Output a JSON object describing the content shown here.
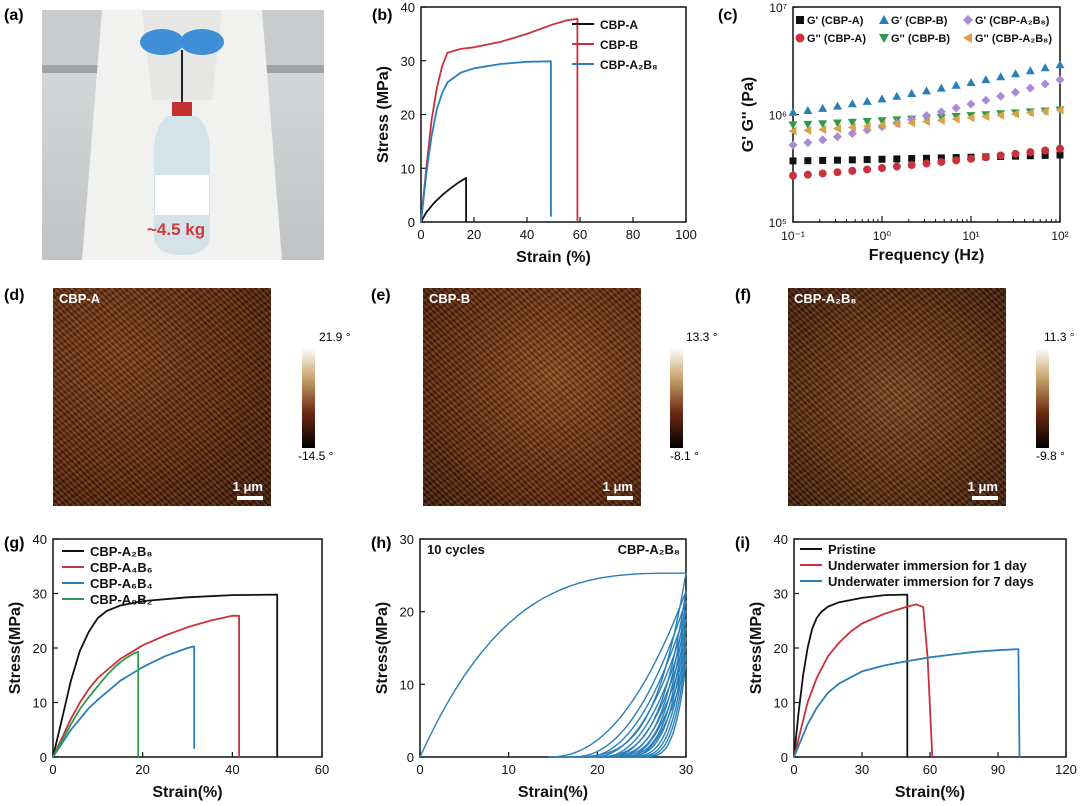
{
  "panels": {
    "a": {
      "label": "(a)",
      "annotation": "~4.5 kg"
    },
    "b": {
      "label": "(b)"
    },
    "c": {
      "label": "(c)"
    },
    "d": {
      "label": "(d)",
      "name": "CBP-A",
      "cb_max": "21.9 °",
      "cb_min": "-14.5 °",
      "scale": "1 μm"
    },
    "e": {
      "label": "(e)",
      "name": "CBP-B",
      "cb_max": "13.3 °",
      "cb_min": "-8.1 °",
      "scale": "1 μm"
    },
    "f": {
      "label": "(f)",
      "name": "CBP-A₂B₈",
      "cb_max": "11.3 °",
      "cb_min": "-9.8 °",
      "scale": "1 μm"
    },
    "g": {
      "label": "(g)"
    },
    "h": {
      "label": "(h)"
    },
    "i": {
      "label": "(i)"
    }
  },
  "colors": {
    "black": "#111111",
    "red": "#c8323c",
    "blue": "#2a7fb8",
    "green": "#2e9a4a",
    "purple": "#a98ad6",
    "orange": "#d9a14a"
  },
  "chart_data": [
    {
      "id": "b",
      "type": "line",
      "xlabel": "Strain (%)",
      "ylabel": "Stress (MPa)",
      "xlim": [
        0,
        100
      ],
      "ylim": [
        0,
        40
      ],
      "xticks": [
        0,
        20,
        40,
        60,
        80,
        100
      ],
      "yticks": [
        0,
        10,
        20,
        30,
        40
      ],
      "series": [
        {
          "name": "CBP-A",
          "color": "#111111",
          "x": [
            0,
            2,
            5,
            8,
            11,
            14,
            17,
            17
          ],
          "y": [
            0,
            1.8,
            3.6,
            5.0,
            6.2,
            7.3,
            8.2,
            0
          ]
        },
        {
          "name": "CBP-B",
          "color": "#c8323c",
          "x": [
            0,
            2,
            4,
            6,
            8,
            10,
            15,
            20,
            30,
            40,
            50,
            55,
            59,
            59
          ],
          "y": [
            0,
            10,
            19,
            25,
            29,
            31.5,
            32.2,
            32.5,
            33.5,
            35,
            36.8,
            37.5,
            37.8,
            0
          ]
        },
        {
          "name": "CBP-A₂B₈",
          "color": "#2a7fb8",
          "x": [
            0,
            2,
            4,
            6,
            8,
            10,
            15,
            20,
            30,
            40,
            49,
            49
          ],
          "y": [
            0,
            9,
            16,
            21,
            24,
            26,
            27.8,
            28.6,
            29.4,
            29.8,
            29.9,
            1
          ]
        }
      ]
    },
    {
      "id": "c",
      "type": "scatter",
      "xlabel": "Frequency (Hz)",
      "ylabel": "G' G'' (Pa)",
      "xscale": "log",
      "yscale": "log",
      "xlim": [
        0.1,
        100
      ],
      "ylim": [
        100000,
        10000000
      ],
      "xtick_labels": [
        "10⁻¹",
        "10⁰",
        "10¹",
        "10²"
      ],
      "ytick_labels": [
        "10⁵",
        "10⁶",
        "10⁷"
      ],
      "series": [
        {
          "name": "G' (CBP-A)",
          "marker": "square",
          "color": "#111111",
          "y_start": 370000,
          "y_end": 420000
        },
        {
          "name": "G'' (CBP-A)",
          "marker": "circle",
          "color": "#c8323c",
          "y_start": 270000,
          "y_end": 480000
        },
        {
          "name": "G' (CBP-B)",
          "marker": "triangle-up",
          "color": "#2a7fb8",
          "y_start": 1050000,
          "y_end": 2900000
        },
        {
          "name": "G'' (CBP-B)",
          "marker": "triangle-down",
          "color": "#2e9a4a",
          "y_start": 800000,
          "y_end": 1100000
        },
        {
          "name": "G' (CBP-A₂B₈)",
          "marker": "diamond",
          "color": "#a98ad6",
          "y_start": 520000,
          "y_end": 2100000
        },
        {
          "name": "G'' (CBP-A₂B₈)",
          "marker": "triangle-left",
          "color": "#d9a14a",
          "y_start": 700000,
          "y_end": 1100000
        }
      ]
    },
    {
      "id": "g",
      "type": "line",
      "xlabel": "Strain(%)",
      "ylabel": "Stress(MPa)",
      "xlim": [
        0,
        60
      ],
      "ylim": [
        0,
        40
      ],
      "xticks": [
        0,
        20,
        40,
        60
      ],
      "yticks": [
        0,
        10,
        20,
        30,
        40
      ],
      "series": [
        {
          "name": "CBP-A₂B₈",
          "color": "#111111",
          "x": [
            0,
            2,
            4,
            6,
            8,
            10,
            12,
            15,
            20,
            30,
            40,
            50,
            50
          ],
          "y": [
            0,
            7,
            14,
            19.5,
            23,
            25.5,
            26.8,
            27.8,
            28.6,
            29.3,
            29.7,
            29.8,
            0
          ]
        },
        {
          "name": "CBP-A₄B₆",
          "color": "#c8323c",
          "x": [
            0,
            2,
            4,
            6,
            8,
            10,
            15,
            20,
            25,
            30,
            35,
            40,
            41.5,
            41.5
          ],
          "y": [
            0,
            3.5,
            7,
            10,
            12.5,
            14.5,
            18,
            20.5,
            22.3,
            23.8,
            25,
            25.9,
            25.9,
            0
          ]
        },
        {
          "name": "CBP-A₆B₄",
          "color": "#2a7fb8",
          "x": [
            0,
            2,
            4,
            6,
            8,
            10,
            15,
            20,
            25,
            30,
            31.5,
            31.5
          ],
          "y": [
            0,
            2.5,
            5,
            7,
            9,
            10.5,
            14,
            16.5,
            18.5,
            20,
            20.3,
            1.5
          ]
        },
        {
          "name": "CBP-A₈B₂",
          "color": "#2e9a4a",
          "x": [
            0,
            2,
            4,
            6,
            8,
            10,
            12,
            14,
            16,
            18,
            19,
            19
          ],
          "y": [
            0,
            3,
            6,
            8.8,
            11,
            13,
            15,
            16.7,
            18,
            19,
            19.3,
            0
          ]
        }
      ]
    },
    {
      "id": "h",
      "type": "line",
      "xlabel": "Strain(%)",
      "ylabel": "Stress(MPa)",
      "xlim": [
        0,
        30
      ],
      "ylim": [
        0,
        30
      ],
      "xticks": [
        0,
        10,
        20,
        30
      ],
      "yticks": [
        0,
        10,
        20,
        30
      ],
      "annotation_left": "10 cycles",
      "annotation_right": "CBP-A₂B₈",
      "loading_peaks": [
        25.3,
        22.8,
        21.5,
        20.2,
        19.0,
        17.8,
        16.5,
        15.3,
        14.0,
        12.8
      ],
      "unload_zero_strain": [
        14.5,
        17.2,
        18.5,
        19.5,
        20.5,
        21.3,
        22.2,
        23.0,
        23.7,
        24.4
      ],
      "series": [
        {
          "name": "cycles",
          "color": "#2a7fb8"
        }
      ]
    },
    {
      "id": "i",
      "type": "line",
      "xlabel": "Strain(%)",
      "ylabel": "Stress(MPa)",
      "xlim": [
        0,
        120
      ],
      "ylim": [
        0,
        40
      ],
      "xticks": [
        0,
        30,
        60,
        90,
        120
      ],
      "yticks": [
        0,
        10,
        20,
        30,
        40
      ],
      "series": [
        {
          "name": "Pristine",
          "color": "#111111",
          "x": [
            0,
            2,
            4,
            6,
            8,
            10,
            12,
            15,
            20,
            30,
            40,
            50,
            50
          ],
          "y": [
            0,
            8,
            15,
            20,
            23.5,
            25.5,
            26.6,
            27.6,
            28.4,
            29.2,
            29.7,
            29.8,
            0
          ]
        },
        {
          "name": "Underwater immersion for 1 day",
          "color": "#c8323c",
          "x": [
            0,
            3,
            6,
            10,
            15,
            20,
            25,
            30,
            40,
            50,
            54,
            57,
            59,
            61
          ],
          "y": [
            0,
            5,
            10,
            14.5,
            18.5,
            21,
            23,
            24.5,
            26.3,
            27.6,
            28,
            27.5,
            18,
            0
          ]
        },
        {
          "name": "Underwater immersion for 7 days",
          "color": "#2a7fb8",
          "x": [
            0,
            3,
            6,
            10,
            15,
            20,
            30,
            40,
            50,
            60,
            70,
            80,
            90,
            99,
            99.5
          ],
          "y": [
            0,
            3,
            6,
            9,
            11.8,
            13.5,
            15.7,
            16.8,
            17.6,
            18.3,
            18.8,
            19.3,
            19.6,
            19.8,
            0
          ]
        }
      ]
    }
  ]
}
